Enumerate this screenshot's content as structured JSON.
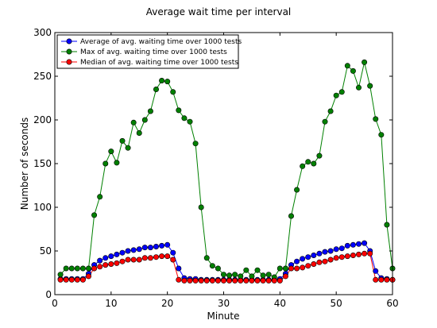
{
  "chart_data": {
    "type": "line",
    "title": "Average wait time per interval",
    "xlabel": "Minute",
    "ylabel": "Number of seconds",
    "xlim": [
      0,
      60
    ],
    "ylim": [
      0,
      300
    ],
    "xticks": [
      0,
      10,
      20,
      30,
      40,
      50,
      60
    ],
    "yticks": [
      0,
      50,
      100,
      150,
      200,
      250,
      300
    ],
    "grid": false,
    "legend_position": "top-left",
    "x": [
      1,
      2,
      3,
      4,
      5,
      6,
      7,
      8,
      9,
      10,
      11,
      12,
      13,
      14,
      15,
      16,
      17,
      18,
      19,
      20,
      21,
      22,
      23,
      24,
      25,
      26,
      27,
      28,
      29,
      30,
      31,
      32,
      33,
      34,
      35,
      36,
      37,
      38,
      39,
      40,
      41,
      42,
      43,
      44,
      45,
      46,
      47,
      48,
      49,
      50,
      51,
      52,
      53,
      54,
      55,
      56,
      57,
      58,
      59,
      60
    ],
    "series": [
      {
        "name": "Average of avg. waiting time over 1000 tests",
        "color": "#0000ff",
        "values": [
          18,
          18,
          18,
          18,
          18,
          24,
          34,
          39,
          42,
          44,
          46,
          48,
          50,
          51,
          52,
          54,
          54,
          55,
          56,
          57,
          48,
          30,
          19,
          18,
          18,
          17,
          17,
          17,
          17,
          17,
          17,
          17,
          17,
          17,
          17,
          17,
          17,
          17,
          17,
          18,
          24,
          34,
          38,
          41,
          43,
          45,
          47,
          49,
          50,
          52,
          53,
          56,
          57,
          58,
          59,
          50,
          27,
          19,
          18,
          17
        ]
      },
      {
        "name": "Max of avg. waiting time over 1000 tests",
        "color": "#008000",
        "values": [
          23,
          30,
          30,
          30,
          30,
          30,
          91,
          112,
          150,
          164,
          151,
          176,
          168,
          197,
          185,
          200,
          210,
          235,
          245,
          244,
          232,
          211,
          202,
          198,
          173,
          100,
          42,
          33,
          30,
          23,
          22,
          23,
          21,
          28,
          21,
          28,
          22,
          23,
          20,
          30,
          30,
          90,
          120,
          147,
          152,
          150,
          159,
          198,
          210,
          228,
          232,
          262,
          256,
          237,
          266,
          239,
          201,
          183,
          80,
          30
        ]
      },
      {
        "name": "Median of avg. waiting time over 1000 tests",
        "color": "#ff0000",
        "values": [
          17,
          17,
          17,
          17,
          17,
          21,
          30,
          32,
          34,
          35,
          36,
          38,
          40,
          40,
          40,
          42,
          42,
          43,
          44,
          44,
          40,
          17,
          16,
          16,
          16,
          16,
          16,
          16,
          16,
          16,
          16,
          16,
          16,
          16,
          16,
          16,
          16,
          16,
          16,
          16,
          21,
          30,
          30,
          31,
          33,
          35,
          37,
          38,
          40,
          42,
          43,
          44,
          45,
          46,
          47,
          47,
          17,
          17,
          17,
          17
        ]
      }
    ]
  }
}
